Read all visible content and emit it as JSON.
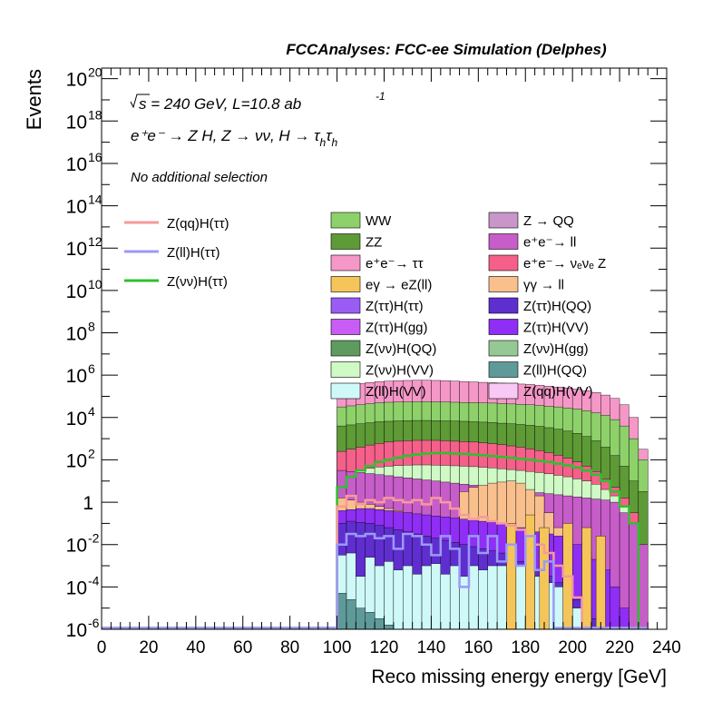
{
  "header": "FCCAnalyses: FCC-ee Simulation (Delphes)",
  "annotations": {
    "energy_sqrt": "s",
    "energy_rest": " = 240 GeV, L=10.8 ab",
    "lumi_exp": "-1",
    "process": "e⁺e⁻ → Z H, Z → νν, H → τ",
    "process_sub": "h",
    "process_tail": "τ",
    "selection": "No additional selection"
  },
  "legend_lines": [
    {
      "label": "Z(qq)H(ττ)",
      "color": "#f59a9a"
    },
    {
      "label": "Z(ll)H(ττ)",
      "color": "#9a9af5"
    },
    {
      "label": "Z(νν)H(ττ)",
      "color": "#2fbf2f"
    }
  ],
  "legend_boxes": [
    {
      "label": "WW",
      "color": "#8ed16a"
    },
    {
      "label": "Z → QQ",
      "color": "#c996c9"
    },
    {
      "label": "ZZ",
      "color": "#5e9a36"
    },
    {
      "label": "e⁺e⁻→ ll",
      "color": "#c65dc9"
    },
    {
      "label": "e⁺e⁻→ ττ",
      "color": "#f598c8"
    },
    {
      "label": "e⁺e⁻→ νₑνₑ Z",
      "color": "#f5608a"
    },
    {
      "label": "eγ → eZ(ll)",
      "color": "#f5c55a"
    },
    {
      "label": "γγ → ll",
      "color": "#f9c08e"
    },
    {
      "label": "Z(ττ)H(ττ)",
      "color": "#9a5cf5"
    },
    {
      "label": "Z(ττ)H(QQ)",
      "color": "#5f2ecf"
    },
    {
      "label": "Z(ττ)H(gg)",
      "color": "#c85cf5"
    },
    {
      "label": "Z(ττ)H(VV)",
      "color": "#8f2ef5"
    },
    {
      "label": "Z(νν)H(QQ)",
      "color": "#5f9a5f"
    },
    {
      "label": "Z(νν)H(gg)",
      "color": "#96c896"
    },
    {
      "label": "Z(νν)H(VV)",
      "color": "#cff9c5"
    },
    {
      "label": "Z(ll)H(QQ)",
      "color": "#5f9a9a"
    },
    {
      "label": "Z(ll)H(VV)",
      "color": "#cff9f9"
    },
    {
      "label": "Z(qq)H(VV)",
      "color": "#f9c8f5"
    }
  ],
  "chart_data": {
    "type": "area",
    "xlabel": "Reco missing energy energy [GeV]",
    "ylabel": "Events",
    "xlim": [
      0,
      240
    ],
    "ylim_log10": [
      -6,
      20.5
    ],
    "log_y": true,
    "x_ticks": [
      0,
      20,
      40,
      60,
      80,
      100,
      120,
      140,
      160,
      180,
      200,
      220,
      240
    ],
    "y_ticks": [
      {
        "exp": -6,
        "label": "10",
        "sup": "-6"
      },
      {
        "exp": -4,
        "label": "10",
        "sup": "-4"
      },
      {
        "exp": -2,
        "label": "10",
        "sup": "-2"
      },
      {
        "exp": 0,
        "label": "1",
        "sup": ""
      },
      {
        "exp": 2,
        "label": "10",
        "sup": "2"
      },
      {
        "exp": 4,
        "label": "10",
        "sup": "4"
      },
      {
        "exp": 6,
        "label": "10",
        "sup": "6"
      },
      {
        "exp": 8,
        "label": "10",
        "sup": "8"
      },
      {
        "exp": 10,
        "label": "10",
        "sup": "10"
      },
      {
        "exp": 12,
        "label": "10",
        "sup": "12"
      },
      {
        "exp": 14,
        "label": "10",
        "sup": "14"
      },
      {
        "exp": 16,
        "label": "10",
        "sup": "16"
      },
      {
        "exp": 18,
        "label": "10",
        "sup": "18"
      },
      {
        "exp": 20,
        "label": "10",
        "sup": "20"
      }
    ],
    "bin_edges": [
      100,
      104,
      108,
      112,
      116,
      120,
      124,
      128,
      132,
      136,
      140,
      144,
      148,
      152,
      156,
      160,
      164,
      168,
      172,
      176,
      180,
      184,
      188,
      192,
      196,
      200,
      204,
      208,
      212,
      216,
      220,
      224,
      228,
      232
    ],
    "stack_log10": [
      {
        "name": "e⁺e⁻→ ττ",
        "color": "#f598c8",
        "values": [
          5.5,
          5.55,
          5.6,
          5.65,
          5.7,
          5.72,
          5.74,
          5.75,
          5.76,
          5.76,
          5.75,
          5.74,
          5.72,
          5.7,
          5.68,
          5.66,
          5.64,
          5.62,
          5.6,
          5.58,
          5.56,
          5.52,
          5.48,
          5.44,
          5.4,
          5.34,
          5.27,
          5.18,
          5.06,
          4.9,
          4.6,
          4.0,
          2.5
        ]
      },
      {
        "name": "WW",
        "color": "#8ed16a",
        "values": [
          4.5,
          4.55,
          4.6,
          4.65,
          4.7,
          4.72,
          4.73,
          4.74,
          4.75,
          4.75,
          4.74,
          4.73,
          4.72,
          4.71,
          4.7,
          4.69,
          4.68,
          4.66,
          4.64,
          4.62,
          4.6,
          4.57,
          4.54,
          4.5,
          4.45,
          4.4,
          4.32,
          4.22,
          4.1,
          3.9,
          3.6,
          3.0,
          2.0
        ]
      },
      {
        "name": "ZZ",
        "color": "#5e9a36",
        "values": [
          3.6,
          3.65,
          3.7,
          3.75,
          3.8,
          3.82,
          3.84,
          3.85,
          3.86,
          3.86,
          3.85,
          3.84,
          3.83,
          3.82,
          3.8,
          3.78,
          3.76,
          3.73,
          3.7,
          3.67,
          3.63,
          3.58,
          3.52,
          3.45,
          3.36,
          3.25,
          3.1,
          2.9,
          2.6,
          2.2,
          1.7,
          1.0,
          0.5
        ]
      },
      {
        "name": "e⁺e⁻→ νₑνₑ Z",
        "color": "#f5608a",
        "values": [
          2.4,
          2.5,
          2.6,
          2.7,
          2.78,
          2.84,
          2.88,
          2.9,
          2.92,
          2.92,
          2.92,
          2.9,
          2.88,
          2.86,
          2.84,
          2.8,
          2.76,
          2.72,
          2.66,
          2.6,
          2.52,
          2.44,
          2.34,
          2.22,
          2.08,
          1.9,
          1.7,
          1.45,
          1.1,
          0.7,
          0.2,
          -0.5,
          -2.0
        ]
      },
      {
        "name": "Z(νν)H(VV)",
        "color": "#cff9c5",
        "values": [
          1.3,
          1.4,
          1.5,
          1.6,
          1.66,
          1.7,
          1.73,
          1.75,
          1.76,
          1.76,
          1.75,
          1.74,
          1.72,
          1.7,
          1.68,
          1.65,
          1.62,
          1.58,
          1.54,
          1.5,
          1.45,
          1.4,
          1.34,
          1.27,
          1.2,
          1.1,
          1.0,
          0.85,
          0.6,
          0.3,
          -0.2,
          -1.0,
          -2.5
        ]
      },
      {
        "name": "e⁺e⁻→ ll",
        "color": "#c65dc9",
        "values": [
          1.5,
          1.45,
          1.4,
          1.35,
          1.3,
          1.25,
          1.2,
          1.15,
          1.1,
          1.05,
          1.0,
          0.95,
          0.9,
          0.85,
          0.8,
          0.75,
          0.7,
          0.65,
          0.6,
          0.55,
          0.5,
          0.45,
          0.4,
          0.35,
          0.3,
          0.25,
          0.2,
          0.15,
          0.1,
          0.0,
          -0.5,
          -1.0,
          -2.0
        ]
      },
      {
        "name": "γγ → ll",
        "color": "#f9c08e",
        "values": [
          0.2,
          0.1,
          0.0,
          -0.1,
          -0.2,
          -0.3,
          -0.4,
          -0.5,
          -0.6,
          -0.65,
          -0.7,
          -0.75,
          -0.8,
          0.5,
          0.7,
          0.8,
          0.9,
          0.95,
          1.0,
          0.9,
          0.6,
          0.3,
          -0.5,
          -1.2,
          -1.8,
          -2.5,
          -3.5,
          -4.0,
          -4.5,
          -5.0,
          -5.5,
          -6.0,
          -6.0
        ]
      },
      {
        "name": "Z(ττ)H(VV)",
        "color": "#8f2ef5",
        "values": [
          -0.4,
          -0.35,
          -0.3,
          -0.3,
          -0.35,
          -0.4,
          -0.45,
          -0.5,
          -0.55,
          -0.6,
          -0.65,
          -0.7,
          -0.75,
          -0.8,
          -0.85,
          -0.9,
          -0.95,
          -1.0,
          -1.1,
          -1.2,
          -1.3,
          -1.4,
          -1.5,
          -1.6,
          -1.8,
          -2.0,
          -2.3,
          -2.7,
          -3.2,
          -4.0,
          -5.0,
          -6.0,
          -6.0
        ]
      },
      {
        "name": "Z(ττ)H(QQ)",
        "color": "#5f2ecf",
        "values": [
          -1.0,
          -0.9,
          -0.95,
          -1.0,
          -1.1,
          -1.2,
          -1.3,
          -1.4,
          -1.5,
          -1.6,
          -1.7,
          -1.8,
          -1.9,
          -2.0,
          -2.1,
          -2.2,
          -2.3,
          -2.4,
          -2.6,
          -2.8,
          -3.0,
          -3.2,
          -3.5,
          -3.8,
          -4.2,
          -4.6,
          -5.0,
          -5.5,
          -6.0,
          -6.0,
          -6.0,
          -6.0,
          -6.0
        ]
      },
      {
        "name": "Z(ll)H(VV)",
        "color": "#cff9f9",
        "values": [
          -2.5,
          -2.4,
          -3.5,
          -2.6,
          -3.0,
          -2.8,
          -3.2,
          -3.0,
          -3.4,
          -3.0,
          -2.9,
          -3.4,
          -3.0,
          -3.5,
          -3.0,
          -3.2,
          -3.0,
          -3.0,
          -3.4,
          -3.0,
          -3.2,
          -3.5,
          -3.8,
          -4.0,
          -4.5,
          -5.0,
          -5.5,
          -6.0,
          -6.0,
          -6.0,
          -6.0,
          -6.0,
          -6.0
        ]
      },
      {
        "name": "Z(ll)H(QQ)",
        "color": "#5f9a9a",
        "values": [
          -4.3,
          -4.6,
          -5.0,
          -5.2,
          -5.5,
          -5.8,
          -6.0,
          -6.0,
          -6.0,
          -6.0,
          -6.0,
          -6.0,
          -6.0,
          -6.0,
          -6.0,
          -6.0,
          -6.0,
          -6.0,
          -6.0,
          -6.0,
          -6.0,
          -6.0,
          -6.0,
          -6.0,
          -6.0,
          -6.0,
          -6.0,
          -6.0,
          -6.0,
          -6.0,
          -6.0,
          -6.0,
          -6.0
        ]
      }
    ],
    "lines_log10": [
      {
        "name": "Z(νν)H(ττ)",
        "color": "#2fbf2f",
        "values": [
          0.7,
          1.2,
          1.5,
          1.7,
          1.9,
          2.0,
          2.1,
          2.2,
          2.25,
          2.3,
          2.32,
          2.32,
          2.3,
          2.28,
          2.25,
          2.22,
          2.18,
          2.14,
          2.1,
          2.05,
          2.0,
          1.95,
          1.9,
          1.82,
          1.74,
          1.64,
          1.5,
          1.3,
          1.0,
          0.5,
          -0.2,
          -1.0,
          -6.0
        ],
        "baseline_from": 0
      },
      {
        "name": "Z(qq)H(ττ)",
        "color": "#f59a9a",
        "values": [
          -0.2,
          0.3,
          -0.1,
          0.1,
          0.0,
          0.2,
          0.1,
          0.0,
          0.1,
          -0.1,
          0.2,
          0.0,
          -0.3,
          -0.6,
          -0.8,
          -0.7,
          -0.9,
          -1.0,
          -1.1,
          -1.3,
          -1.6,
          -2.0,
          -2.4,
          -3.0,
          -3.5,
          -4.5,
          -6.0,
          -6.0,
          -6.0,
          -6.0,
          -6.0,
          -6.0,
          -6.0
        ]
      },
      {
        "name": "Z(ll)H(ττ)",
        "color": "#9a9af5",
        "values": [
          -2.0,
          -1.5,
          -1.6,
          -1.5,
          -1.7,
          -1.6,
          -2.2,
          -1.5,
          -1.6,
          -2.0,
          -2.5,
          -1.6,
          -2.2,
          -4.0,
          -1.6,
          -2.4,
          -1.6,
          -2.8,
          -2.0,
          -3.0,
          -1.6,
          -3.2,
          -2.8,
          -6.0,
          -6.0,
          -6.0,
          -6.0,
          -6.0,
          -6.0,
          -6.0,
          -6.0,
          -6.0,
          -6.0
        ]
      }
    ],
    "bars_log10": [
      {
        "name": "eγ → eZ(ll)",
        "color": "#f5c55a",
        "edges": [
          [
            172,
            176
          ],
          [
            180,
            184
          ],
          [
            186,
            190
          ],
          [
            196,
            200
          ],
          [
            204,
            208
          ],
          [
            210,
            214
          ]
        ],
        "values": [
          -1.0,
          -0.6,
          -1.2,
          -1.0,
          -1.2,
          -1.6
        ]
      }
    ]
  }
}
